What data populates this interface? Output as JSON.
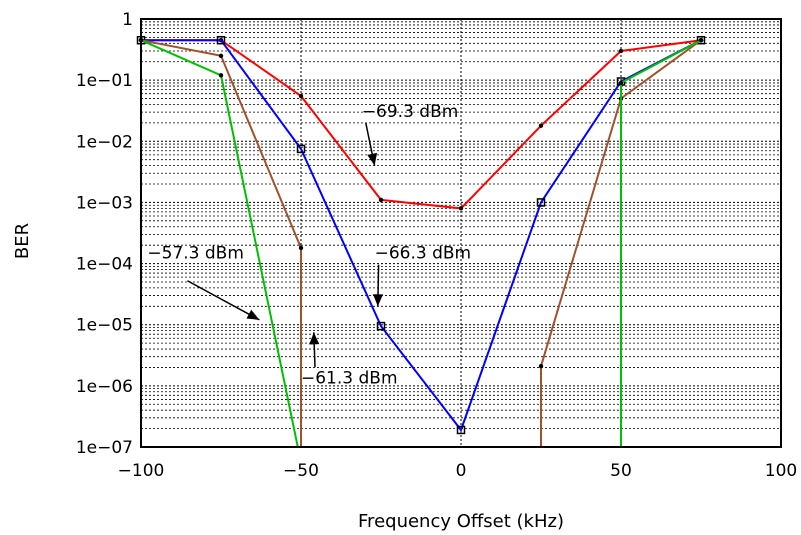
{
  "chart_data": {
    "type": "line",
    "title": "",
    "xlabel": "Frequency Offset (kHz)",
    "ylabel": "BER",
    "xlim": [
      -100,
      100
    ],
    "ylim": [
      1e-07,
      1
    ],
    "yscale": "log",
    "grid": true,
    "x_ticks": [
      -100,
      -50,
      0,
      50,
      100
    ],
    "x_tick_labels": [
      "−100",
      "−50",
      "0",
      "50",
      "100"
    ],
    "y_ticks": [
      1,
      0.1,
      0.01,
      0.001,
      0.0001,
      1e-05,
      1e-06,
      1e-07
    ],
    "y_tick_labels": [
      "1",
      "1e−01",
      "1e−02",
      "1e−03",
      "1e−04",
      "1e−05",
      "1e−06",
      "1e−07"
    ],
    "series": [
      {
        "name": "−69.3 dBm",
        "color": "#ff0000",
        "marker": "dot",
        "points": [
          [
            -100,
            0.45
          ],
          [
            -75,
            0.45
          ],
          [
            -50,
            0.055
          ],
          [
            -25,
            0.0011
          ],
          [
            0,
            0.0008
          ],
          [
            25,
            0.018
          ],
          [
            50,
            0.3
          ],
          [
            75,
            0.45
          ]
        ]
      },
      {
        "name": "−66.3 dBm",
        "color": "#0000ff",
        "marker": "square",
        "points": [
          [
            -100,
            0.45
          ],
          [
            -75,
            0.45
          ],
          [
            -50,
            0.0075
          ],
          [
            -25,
            9.5e-06
          ],
          [
            0,
            1.9e-07
          ],
          [
            25,
            0.001
          ],
          [
            50,
            0.095
          ],
          [
            75,
            0.45
          ]
        ]
      },
      {
        "name": "−61.3 dBm",
        "color": "#a0522d",
        "marker": "dot",
        "points": [
          [
            -100,
            0.45
          ],
          [
            -75,
            0.25
          ],
          [
            -50,
            0.00018
          ],
          [
            -50,
            1e-07
          ],
          null,
          [
            25,
            1e-07
          ],
          [
            25,
            2.1e-06
          ],
          [
            50,
            0.05
          ],
          [
            75,
            0.45
          ]
        ]
      },
      {
        "name": "−57.3 dBm",
        "color": "#00c000",
        "marker": "dot",
        "points": [
          [
            -100,
            0.45
          ],
          [
            -75,
            0.12
          ],
          [
            -51,
            1e-07
          ],
          null,
          [
            50,
            1e-07
          ],
          [
            50,
            0.09
          ],
          [
            75,
            0.45
          ]
        ]
      }
    ],
    "annotations": [
      {
        "text": "−69.3 dBm",
        "at": [
          -31,
          0.025
        ],
        "arrow_to": [
          -27,
          0.004
        ]
      },
      {
        "text": "−66.3 dBm",
        "at": [
          -27,
          0.00012
        ],
        "arrow_to": [
          -26,
          2e-05
        ]
      },
      {
        "text": "−57.3 dBm",
        "at": [
          -98,
          0.00012
        ],
        "arrow_to": [
          -63,
          1.2e-05
        ]
      },
      {
        "text": "−61.3 dBm",
        "at": [
          -50,
          1.1e-06
        ],
        "arrow_to": [
          -46,
          7.5e-06
        ]
      }
    ]
  }
}
